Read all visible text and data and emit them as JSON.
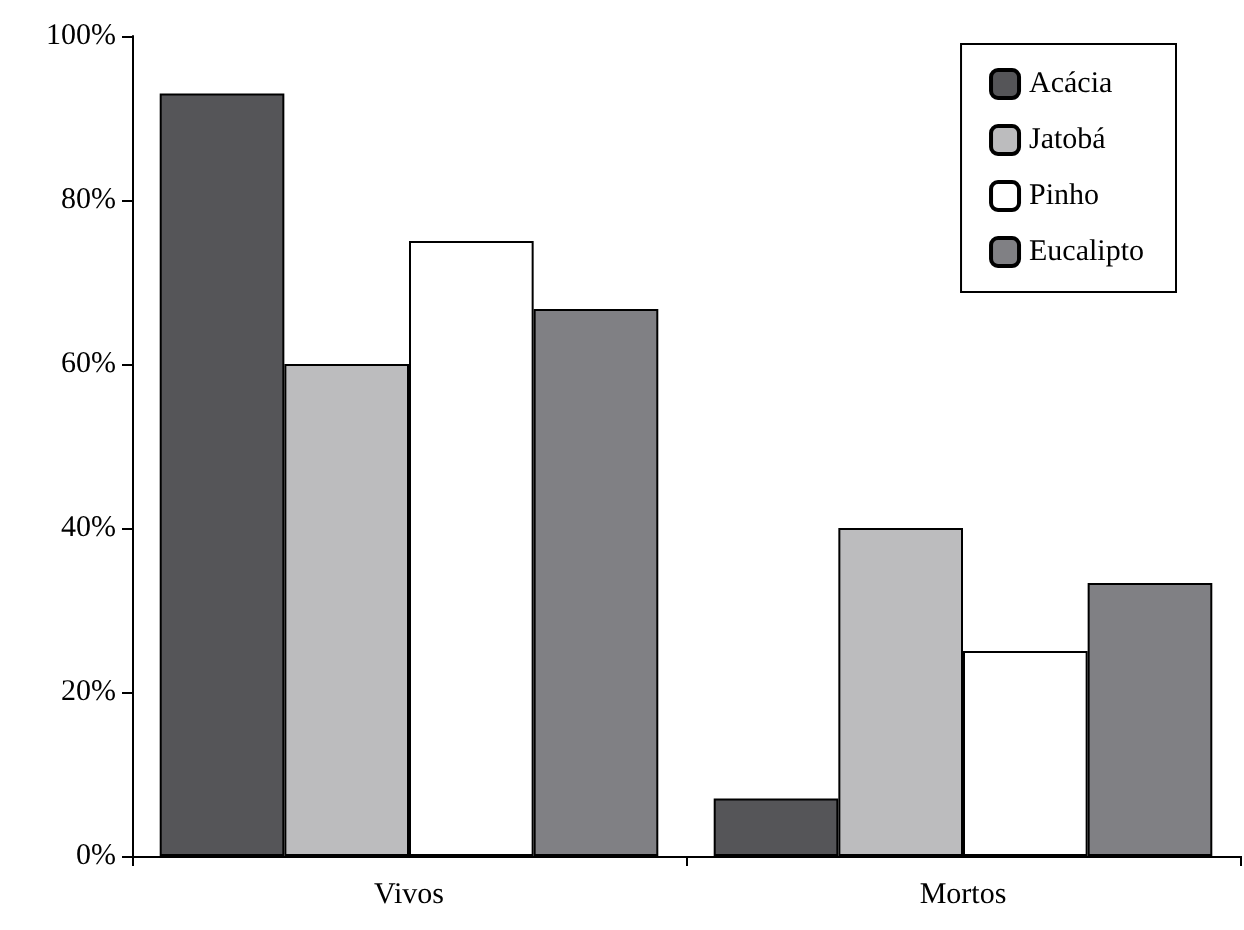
{
  "chart_data": {
    "type": "bar",
    "categories": [
      "Vivos",
      "Mortos"
    ],
    "series": [
      {
        "name": "Acácia",
        "color": "#555558",
        "values": [
          93,
          7
        ]
      },
      {
        "name": "Jatobá",
        "color": "#bcbcbe",
        "values": [
          60,
          40
        ]
      },
      {
        "name": "Pinho",
        "color": "#ffffff",
        "values": [
          75,
          25
        ]
      },
      {
        "name": "Eucalipto",
        "color": "#808084",
        "values": [
          66.7,
          33.3
        ]
      }
    ],
    "ylim": [
      0,
      100
    ],
    "yticks": [
      {
        "value": 0,
        "label": "0%"
      },
      {
        "value": 20,
        "label": "20%"
      },
      {
        "value": 40,
        "label": "40%"
      },
      {
        "value": 60,
        "label": "60%"
      },
      {
        "value": 80,
        "label": "80%"
      },
      {
        "value": 100,
        "label": "100%"
      }
    ],
    "grid": false,
    "legend": "top right"
  }
}
